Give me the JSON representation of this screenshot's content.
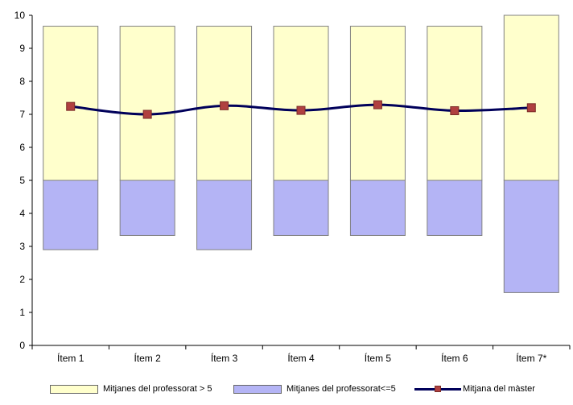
{
  "chart_data": {
    "type": "bar",
    "subtype": "floating-stacked-bar-with-line",
    "title": "",
    "xlabel": "",
    "ylabel": "",
    "ylim": [
      0,
      10
    ],
    "yticks": [
      0,
      1,
      2,
      3,
      4,
      5,
      6,
      7,
      8,
      9,
      10
    ],
    "grid": false,
    "legend_position": "bottom",
    "categories": [
      "Ítem 1",
      "Ítem 2",
      "Ítem 3",
      "Ítem 4",
      "Ítem 5",
      "Ítem 6",
      "Ítem 7*"
    ],
    "series": [
      {
        "name": "Mitjanes del professorat > 5",
        "kind": "range-bar",
        "color": "#ffffcc",
        "low": [
          5,
          5,
          5,
          5,
          5,
          5,
          5
        ],
        "high": [
          9.67,
          9.67,
          9.67,
          9.67,
          9.67,
          9.67,
          10
        ]
      },
      {
        "name": "Mitjanes del professorat<=5",
        "kind": "range-bar",
        "color": "#b4b4f5",
        "low": [
          2.9,
          3.33,
          2.9,
          3.33,
          3.33,
          3.33,
          1.6
        ],
        "high": [
          5,
          5,
          5,
          5,
          5,
          5,
          5
        ]
      },
      {
        "name": "Mitjana del màster",
        "kind": "line",
        "color": "#00005a",
        "marker_color": "#b04040",
        "values": [
          7.24,
          7.0,
          7.26,
          7.12,
          7.29,
          7.11,
          7.2
        ]
      }
    ]
  }
}
